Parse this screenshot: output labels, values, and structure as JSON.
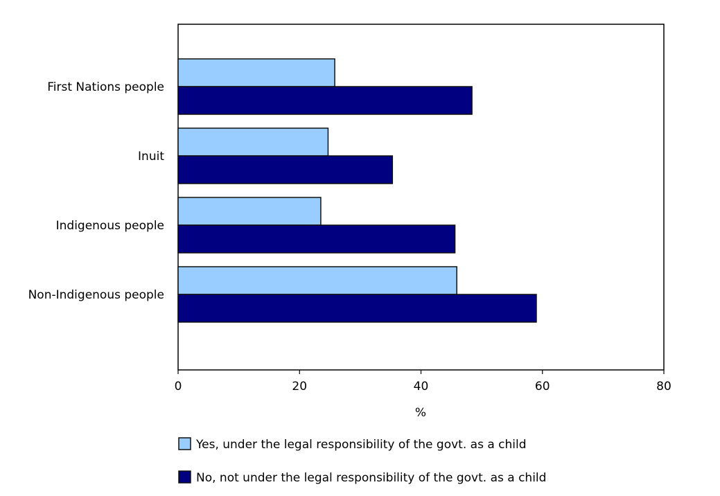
{
  "chart_data": {
    "type": "bar",
    "orientation": "horizontal",
    "categories": [
      "First Nations people",
      "Inuit",
      "Indigenous people",
      "Non-Indigenous people"
    ],
    "series": [
      {
        "name": "Yes, under the legal responsibility of the govt. as a child",
        "color": "#99CCFF",
        "values": [
          25.8,
          24.7,
          23.5,
          45.9
        ]
      },
      {
        "name": "No, not under the legal responsibility of the govt. as a child",
        "color": "#000080",
        "values": [
          48.4,
          35.3,
          45.6,
          59.0
        ]
      }
    ],
    "xlabel": "%",
    "ylabel": "",
    "xlim": [
      0,
      80
    ],
    "xticks": [
      "0",
      "20",
      "40",
      "60",
      "80"
    ],
    "grid": false,
    "legend_position": "bottom"
  }
}
